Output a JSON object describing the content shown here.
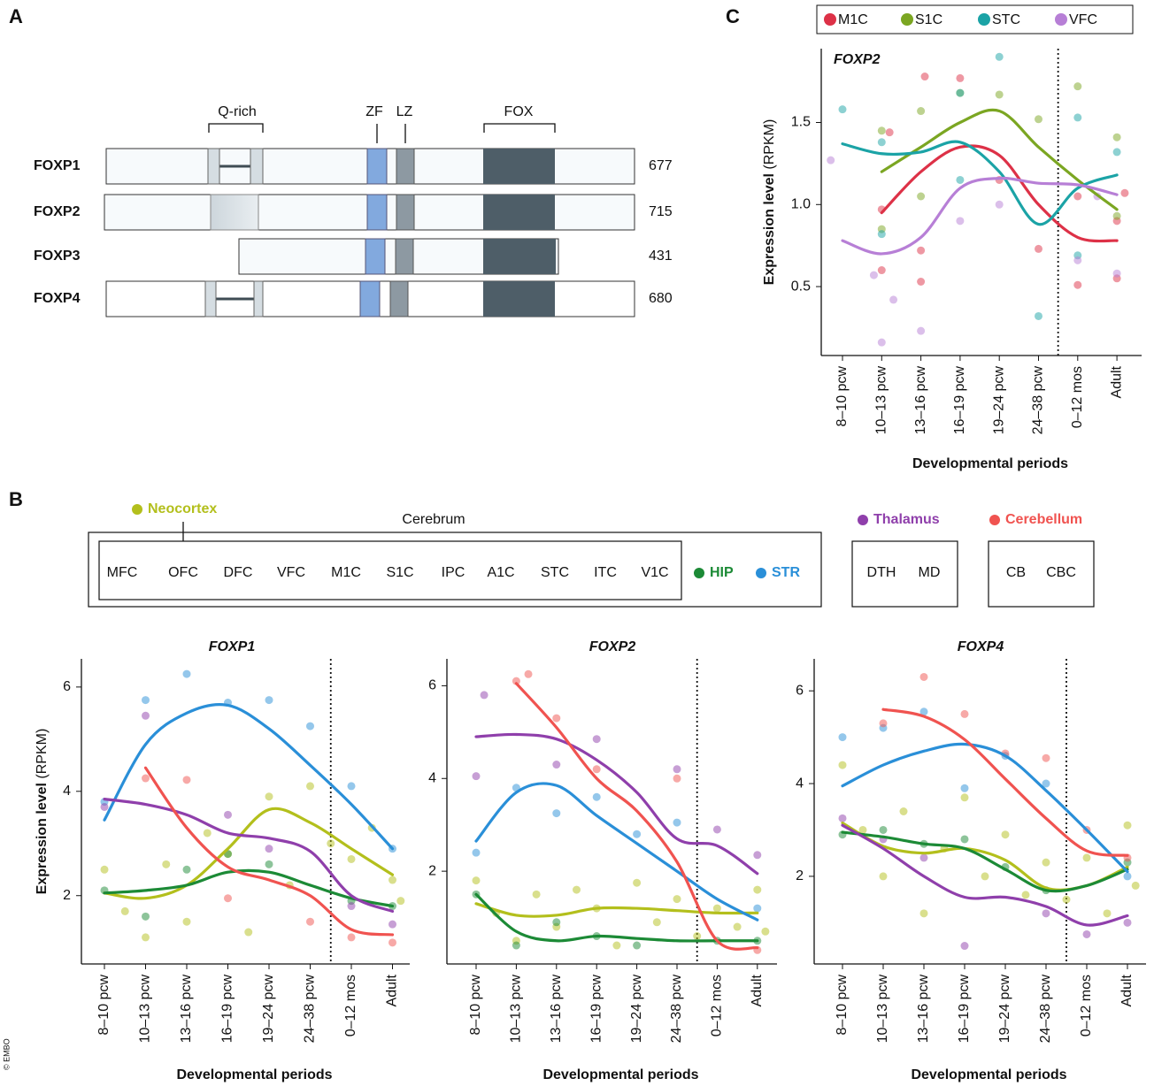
{
  "panel_labels": [
    "A",
    "B",
    "C"
  ],
  "copyright": "© EMBO",
  "panel_a": {
    "headers": [
      "Q-rich",
      "ZF",
      "LZ",
      "FOX"
    ],
    "proteins": [
      {
        "name": "FOXP1",
        "length": 677
      },
      {
        "name": "FOXP2",
        "length": 715
      },
      {
        "name": "FOXP3",
        "length": 431
      },
      {
        "name": "FOXP4",
        "length": 680
      }
    ]
  },
  "panel_b_legend": {
    "cerebrum": "Cerebrum",
    "neocortex_regions": [
      "MFC",
      "OFC",
      "DFC",
      "VFC",
      "M1C",
      "S1C",
      "IPC",
      "A1C",
      "STC",
      "ITC",
      "V1C"
    ],
    "thalamus_regions": [
      "DTH",
      "MD"
    ],
    "cerebellum_regions": [
      "CB",
      "CBC"
    ]
  },
  "chart_data": [
    {
      "type": "line",
      "title": "FOXP2",
      "ylabel": "Expression level",
      "ylabel_unit": "(RPKM)",
      "xlabel": "Developmental periods",
      "categories": [
        "8–10 pcw",
        "10–13 pcw",
        "13–16 pcw",
        "16–19 pcw",
        "19–24 pcw",
        "24–38 pcw",
        "0–12 mos",
        "Adult"
      ],
      "ylim": [
        0.08,
        1.95
      ],
      "yticks": [
        0.5,
        {
          "value": 1,
          "label": "1.0"
        },
        1.5
      ],
      "series": [
        {
          "name": "M1C",
          "color": "#dd3147",
          "values": [
            null,
            0.95,
            1.2,
            1.35,
            1.3,
            1.0,
            0.8,
            0.78
          ],
          "points": {
            "x": [
              1,
              1,
              1.2,
              2.1,
              2,
              2,
              3,
              4,
              5,
              6,
              6,
              7,
              7,
              7.2
            ],
            "y": [
              0.97,
              0.6,
              1.44,
              1.78,
              0.53,
              0.72,
              1.77,
              1.15,
              0.73,
              1.05,
              0.51,
              0.55,
              0.9,
              1.07
            ]
          }
        },
        {
          "name": "S1C",
          "color": "#7ba622",
          "values": [
            null,
            1.2,
            1.35,
            1.5,
            1.57,
            1.35,
            1.15,
            0.97
          ],
          "points": {
            "x": [
              1,
              1,
              2,
              2,
              3,
              4,
              5,
              6,
              7,
              7
            ],
            "y": [
              1.45,
              0.85,
              1.57,
              1.05,
              1.68,
              1.67,
              1.52,
              1.72,
              1.41,
              0.93
            ]
          }
        },
        {
          "name": "STC",
          "color": "#1ba3a6",
          "values": [
            1.37,
            1.31,
            1.32,
            1.38,
            1.2,
            0.88,
            1.1,
            1.18
          ],
          "points": {
            "x": [
              0,
              1,
              1,
              3,
              3,
              4,
              5,
              6,
              6,
              7
            ],
            "y": [
              1.58,
              0.82,
              1.38,
              1.68,
              1.15,
              1.9,
              0.32,
              1.53,
              0.69,
              1.32
            ]
          }
        },
        {
          "name": "VFC",
          "color": "#b77fd6",
          "values": [
            0.78,
            0.7,
            0.8,
            1.1,
            1.16,
            1.13,
            1.12,
            1.06
          ],
          "points": {
            "x": [
              -0.3,
              0.8,
              1,
              1.3,
              2,
              3,
              4,
              6,
              7,
              6.5
            ],
            "y": [
              1.27,
              0.57,
              0.16,
              0.42,
              0.23,
              0.9,
              1.0,
              0.66,
              0.58,
              1.05
            ]
          }
        }
      ]
    },
    {
      "type": "line",
      "title": "FOXP1",
      "ylabel": "Expression level",
      "ylabel_unit": "(RPKM)",
      "xlabel": "Developmental periods",
      "categories": [
        "8–10 pcw",
        "10–13 pcw",
        "13–16 pcw",
        "16–19 pcw",
        "19–24 pcw",
        "24–38 pcw",
        "0–12 mos",
        "Adult"
      ],
      "ylim": [
        0.69,
        6.54
      ],
      "yticks": [
        2,
        4,
        6
      ],
      "series": [
        {
          "name": "Neocortex",
          "color": "#b3bf1c",
          "values": [
            2.05,
            1.95,
            2.2,
            2.9,
            3.65,
            3.4,
            2.9,
            2.4
          ],
          "points": {
            "x": [
              0,
              0.5,
              1,
              1.5,
              2,
              2.5,
              3,
              3.5,
              4,
              4.5,
              5,
              5.5,
              6,
              6.5,
              7,
              7.2
            ],
            "y": [
              2.5,
              1.7,
              1.2,
              2.6,
              1.5,
              3.2,
              2.8,
              1.3,
              3.9,
              2.2,
              4.1,
              3.0,
              2.7,
              3.3,
              2.3,
              1.9
            ]
          }
        },
        {
          "name": "HIP",
          "color": "#1c8a36",
          "values": [
            2.05,
            2.1,
            2.2,
            2.45,
            2.45,
            2.2,
            1.95,
            1.8
          ],
          "points": {
            "x": [
              0,
              1,
              2,
              3,
              4,
              6,
              7
            ],
            "y": [
              2.1,
              1.6,
              2.5,
              2.8,
              2.6,
              1.9,
              1.8
            ]
          }
        },
        {
          "name": "STR",
          "color": "#2a8fd8",
          "values": [
            3.45,
            4.9,
            5.5,
            5.65,
            5.2,
            4.5,
            3.75,
            2.9
          ],
          "points": {
            "x": [
              0,
              1,
              2,
              3,
              4,
              5,
              6,
              7
            ],
            "y": [
              3.8,
              5.75,
              6.25,
              5.7,
              5.75,
              5.25,
              4.1,
              2.9
            ]
          }
        },
        {
          "name": "Thalamus",
          "color": "#8f3fab",
          "values": [
            3.85,
            3.75,
            3.55,
            3.2,
            3.1,
            2.85,
            2.0,
            1.7
          ],
          "points": {
            "x": [
              0,
              1,
              3,
              4,
              6,
              7
            ],
            "y": [
              3.7,
              5.45,
              3.55,
              2.9,
              1.8,
              1.45
            ]
          }
        },
        {
          "name": "Cerebellum",
          "color": "#f05350",
          "values": [
            null,
            4.45,
            3.3,
            2.55,
            2.3,
            2.0,
            1.35,
            1.25
          ],
          "points": {
            "x": [
              1,
              2,
              3,
              5,
              6,
              7
            ],
            "y": [
              4.25,
              4.22,
              1.95,
              1.5,
              1.2,
              1.1
            ]
          }
        }
      ]
    },
    {
      "type": "line",
      "title": "FOXP2",
      "xlabel": "Developmental periods",
      "categories": [
        "8–10 pcw",
        "10–13 pcw",
        "13–16 pcw",
        "16–19 pcw",
        "19–24 pcw",
        "24–38 pcw",
        "0–12 mos",
        "Adult"
      ],
      "ylim": [
        0,
        6.58
      ],
      "yticks": [
        2,
        4,
        6
      ],
      "series": [
        {
          "color": "#b3bf1c",
          "values": [
            1.3,
            1.05,
            1.05,
            1.2,
            1.2,
            1.15,
            1.1,
            1.1
          ],
          "points": {
            "x": [
              0,
              0.5,
              1,
              1.5,
              2,
              2.5,
              3,
              3.5,
              4,
              4.5,
              5,
              5.5,
              6,
              6.5,
              7,
              7.2
            ],
            "y": [
              1.8,
              1.1,
              0.5,
              1.5,
              0.8,
              1.6,
              1.2,
              0.4,
              1.75,
              0.9,
              1.4,
              0.6,
              1.2,
              0.8,
              1.6,
              0.7
            ]
          }
        },
        {
          "color": "#1c8a36",
          "values": [
            1.5,
            0.7,
            0.5,
            0.6,
            0.55,
            0.5,
            0.5,
            0.5
          ],
          "points": {
            "x": [
              0,
              1,
              2,
              3,
              4,
              6,
              7
            ],
            "y": [
              1.5,
              0.4,
              0.9,
              0.6,
              0.4,
              0.5,
              0.5
            ]
          }
        },
        {
          "color": "#2a8fd8",
          "values": [
            2.65,
            3.7,
            3.85,
            3.2,
            2.6,
            2.0,
            1.4,
            0.95
          ],
          "points": {
            "x": [
              0,
              1,
              2,
              3,
              4,
              5,
              7
            ],
            "y": [
              2.4,
              3.8,
              3.25,
              3.6,
              2.8,
              3.05,
              1.2
            ]
          }
        },
        {
          "color": "#8f3fab",
          "values": [
            4.9,
            4.95,
            4.85,
            4.4,
            3.7,
            2.7,
            2.55,
            1.95
          ],
          "points": {
            "x": [
              0,
              0.2,
              2,
              3,
              5,
              6,
              7
            ],
            "y": [
              4.05,
              5.8,
              4.3,
              4.85,
              4.2,
              2.9,
              2.35
            ]
          }
        },
        {
          "color": "#f05350",
          "values": [
            null,
            6.05,
            5.1,
            4.0,
            3.3,
            2.2,
            0.5,
            0.35
          ],
          "points": {
            "x": [
              1,
              1.3,
              2,
              3,
              5,
              7
            ],
            "y": [
              6.1,
              6.25,
              5.3,
              4.2,
              4.0,
              0.3
            ]
          }
        }
      ]
    },
    {
      "type": "line",
      "title": "FOXP4",
      "xlabel": "Developmental periods",
      "categories": [
        "8–10 pcw",
        "10–13 pcw",
        "13–16 pcw",
        "16–19 pcw",
        "19–24 pcw",
        "24–38 pcw",
        "0–12 mos",
        "Adult"
      ],
      "ylim": [
        0.11,
        6.69
      ],
      "yticks": [
        2,
        4,
        6
      ],
      "series": [
        {
          "color": "#b3bf1c",
          "values": [
            3.15,
            2.65,
            2.5,
            2.6,
            2.35,
            1.75,
            1.8,
            2.2
          ],
          "points": {
            "x": [
              0,
              0.5,
              1,
              1.5,
              2,
              2.5,
              3,
              3.5,
              4,
              4.5,
              5,
              5.5,
              6,
              6.5,
              7,
              7.2
            ],
            "y": [
              4.4,
              3.0,
              2.0,
              3.4,
              1.2,
              2.6,
              3.7,
              2.0,
              2.9,
              1.6,
              2.3,
              1.5,
              2.4,
              1.2,
              3.1,
              1.8
            ]
          }
        },
        {
          "color": "#1c8a36",
          "values": [
            2.95,
            2.85,
            2.7,
            2.6,
            2.15,
            1.7,
            1.8,
            2.15
          ],
          "points": {
            "x": [
              0,
              1,
              2,
              3,
              4,
              5,
              7
            ],
            "y": [
              2.9,
              3.0,
              2.7,
              2.8,
              2.2,
              1.7,
              2.3
            ]
          }
        },
        {
          "color": "#2a8fd8",
          "values": [
            3.95,
            4.4,
            4.7,
            4.85,
            4.6,
            3.85,
            3.0,
            2.1
          ],
          "points": {
            "x": [
              0,
              1,
              2,
              3,
              4,
              5,
              7
            ],
            "y": [
              5.0,
              5.2,
              5.55,
              3.9,
              4.6,
              4.0,
              2.0
            ]
          }
        },
        {
          "color": "#8f3fab",
          "values": [
            3.1,
            2.6,
            2.0,
            1.55,
            1.55,
            1.35,
            0.95,
            1.15
          ],
          "points": {
            "x": [
              0,
              1,
              2,
              3,
              5,
              6,
              7
            ],
            "y": [
              3.25,
              2.8,
              2.4,
              0.5,
              1.2,
              0.75,
              1.0
            ]
          }
        },
        {
          "color": "#f05350",
          "values": [
            null,
            5.6,
            5.45,
            4.95,
            4.1,
            3.25,
            2.55,
            2.45
          ],
          "points": {
            "x": [
              1,
              2,
              3,
              4,
              5,
              6,
              7
            ],
            "y": [
              5.3,
              6.3,
              5.5,
              4.65,
              4.55,
              3.0,
              2.4
            ]
          }
        }
      ]
    }
  ]
}
